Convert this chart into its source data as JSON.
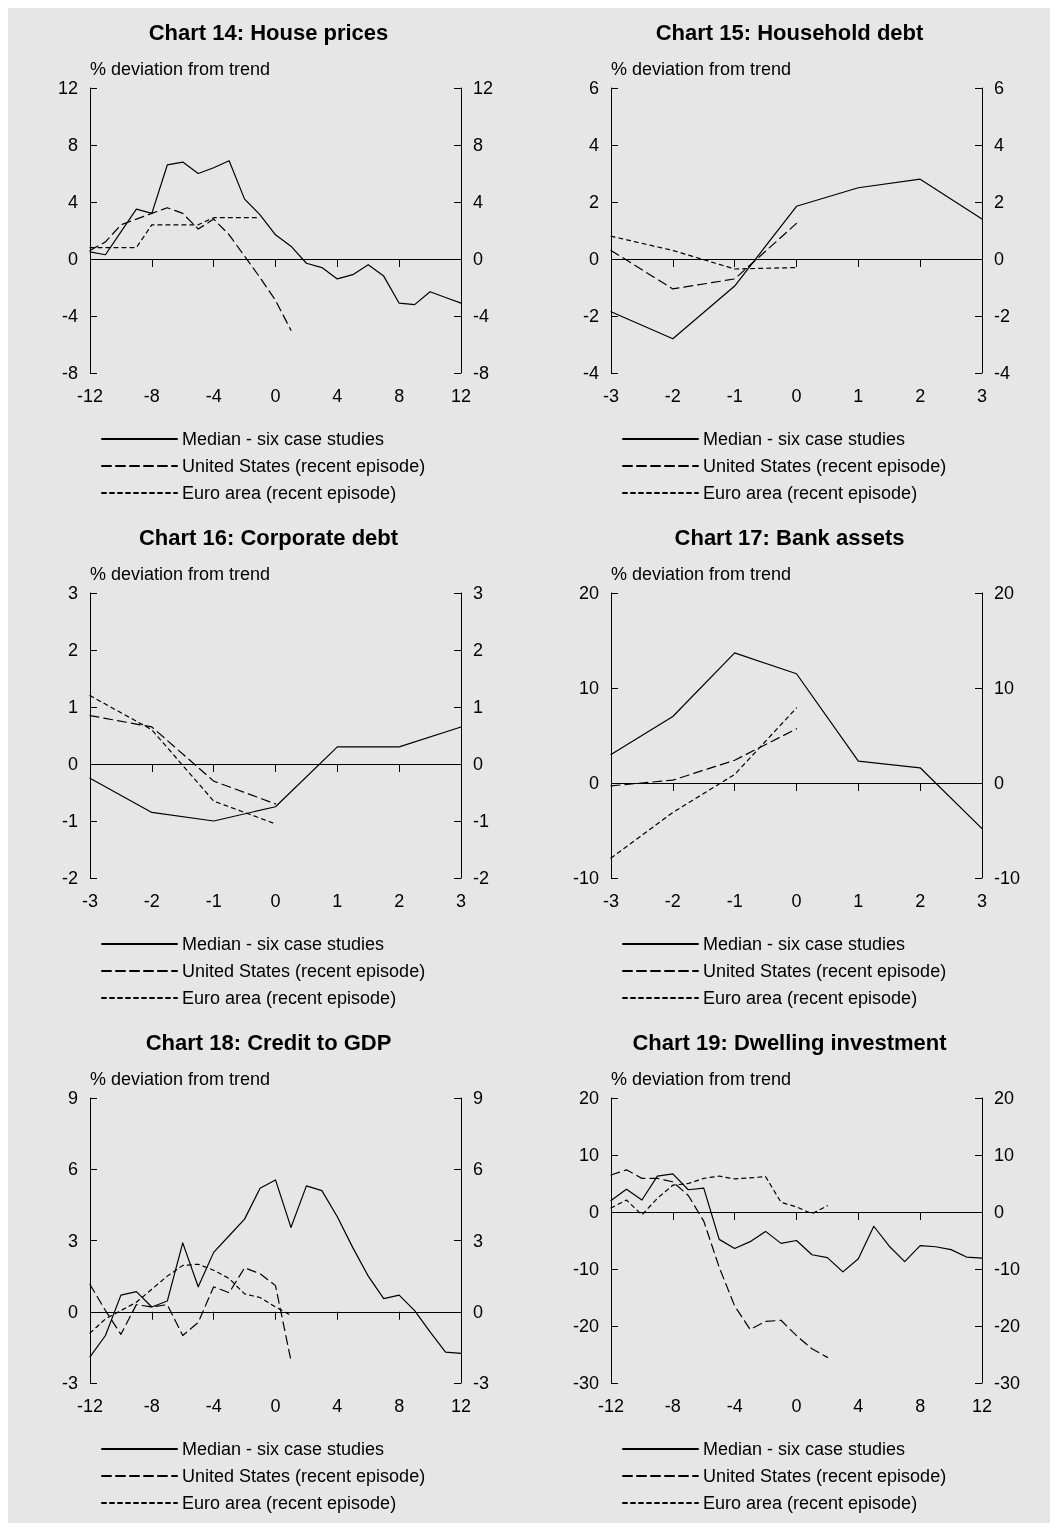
{
  "chart_data": [
    {
      "type": "line",
      "title": "Chart 14: House prices",
      "ylabel": "% deviation from trend",
      "x": [
        -12,
        -11,
        -10,
        -9,
        -8,
        -7,
        -6,
        -5,
        -4,
        -3,
        -2,
        -1,
        0,
        1,
        2,
        3,
        4,
        5,
        6,
        7,
        8,
        9,
        10,
        11,
        12
      ],
      "xlim": [
        -12,
        12
      ],
      "xticks": [
        -12,
        -8,
        -4,
        0,
        4,
        8,
        12
      ],
      "ylim": [
        -8,
        12
      ],
      "yticks": [
        -8,
        -4,
        0,
        4,
        8,
        12
      ],
      "y2lim": [
        -8,
        12
      ],
      "y2ticks": [
        -8,
        -4,
        0,
        4,
        8,
        12
      ],
      "ref_lines": [
        {
          "axis": "y",
          "value": 0
        }
      ],
      "legend": "bottom",
      "grid": false,
      "marker": "none",
      "series": [
        {
          "name": "Median - six case studies",
          "color": "#000000",
          "line_style": "solid",
          "values": [
            0.5,
            0.3,
            1.9,
            3.5,
            3.2,
            6.6,
            6.8,
            6.0,
            6.4,
            6.9,
            4.2,
            3.1,
            1.7,
            0.9,
            -0.3,
            -0.6,
            -1.4,
            -1.1,
            -0.4,
            -1.2,
            -3.1,
            -3.2,
            -2.3,
            -2.7,
            -3.1
          ]
        },
        {
          "name": "United States (recent episode)",
          "color": "#000000",
          "line_style": "dashed",
          "values": [
            0.6,
            1.2,
            2.4,
            2.8,
            3.2,
            3.6,
            3.2,
            2.1,
            2.8,
            1.7,
            0.2,
            -1.3,
            -2.9,
            -5.0,
            null,
            null,
            null,
            null,
            null,
            null,
            null,
            null,
            null,
            null,
            null
          ]
        },
        {
          "name": "Euro area (recent episode)",
          "color": "#000000",
          "line_style": "dashed",
          "values": [
            0.8,
            0.8,
            0.8,
            0.8,
            2.4,
            2.4,
            2.4,
            2.4,
            2.9,
            2.9,
            2.9,
            2.9,
            null,
            null,
            null,
            null,
            null,
            null,
            null,
            null,
            null,
            null,
            null,
            null,
            null
          ]
        }
      ]
    },
    {
      "type": "line",
      "title": "Chart 15: Household debt",
      "ylabel": "% deviation from trend",
      "x": [
        -3,
        -2,
        -1,
        0,
        1,
        2,
        3
      ],
      "xlim": [
        -3,
        3
      ],
      "xticks": [
        -3,
        -2,
        -1,
        0,
        1,
        2,
        3
      ],
      "ylim": [
        -4,
        6
      ],
      "yticks": [
        -4,
        -2,
        0,
        2,
        4,
        6
      ],
      "y2lim": [
        -4,
        6
      ],
      "y2ticks": [
        -4,
        -2,
        0,
        2,
        4,
        6
      ],
      "ref_lines": [
        {
          "axis": "y",
          "value": 0
        }
      ],
      "legend": "bottom",
      "grid": false,
      "marker": "none",
      "series": [
        {
          "name": "Median - six case studies",
          "color": "#000000",
          "line_style": "solid",
          "values": [
            -1.85,
            -2.8,
            -0.95,
            1.85,
            2.5,
            2.8,
            1.4
          ]
        },
        {
          "name": "United States (recent episode)",
          "color": "#000000",
          "line_style": "dashed",
          "values": [
            0.3,
            -1.05,
            -0.7,
            1.25,
            null,
            null,
            null
          ]
        },
        {
          "name": "Euro area (recent episode)",
          "color": "#000000",
          "line_style": "dashed",
          "values": [
            0.8,
            0.3,
            -0.35,
            -0.3,
            null,
            null,
            null
          ]
        }
      ]
    },
    {
      "type": "line",
      "title": "Chart 16: Corporate debt",
      "ylabel": "% deviation from trend",
      "x": [
        -3,
        -2,
        -1,
        0,
        1,
        2,
        3
      ],
      "xlim": [
        -3,
        3
      ],
      "xticks": [
        -3,
        -2,
        -1,
        0,
        1,
        2,
        3
      ],
      "ylim": [
        -2,
        3
      ],
      "yticks": [
        -2,
        -1,
        0,
        1,
        2,
        3
      ],
      "y2lim": [
        -2,
        3
      ],
      "y2ticks": [
        -2,
        -1,
        0,
        1,
        2,
        3
      ],
      "ref_lines": [
        {
          "axis": "y",
          "value": 0
        }
      ],
      "legend": "bottom",
      "grid": false,
      "marker": "none",
      "series": [
        {
          "name": "Median - six case studies",
          "color": "#000000",
          "line_style": "solid",
          "values": [
            -0.25,
            -0.85,
            -1.0,
            -0.75,
            0.3,
            0.3,
            0.65
          ]
        },
        {
          "name": "United States (recent episode)",
          "color": "#000000",
          "line_style": "dashed",
          "values": [
            0.85,
            0.65,
            -0.3,
            -0.7,
            null,
            null,
            null
          ]
        },
        {
          "name": "Euro area (recent episode)",
          "color": "#000000",
          "line_style": "dashed",
          "values": [
            1.2,
            0.6,
            -0.65,
            -1.05,
            null,
            null,
            null
          ]
        }
      ]
    },
    {
      "type": "line",
      "title": "Chart 17: Bank assets",
      "ylabel": "% deviation from trend",
      "x": [
        -3,
        -2,
        -1,
        0,
        1,
        2,
        3
      ],
      "xlim": [
        -3,
        3
      ],
      "xticks": [
        -3,
        -2,
        -1,
        0,
        1,
        2,
        3
      ],
      "ylim": [
        -10,
        20
      ],
      "yticks": [
        -10,
        0,
        10,
        20
      ],
      "y2lim": [
        -10,
        20
      ],
      "y2ticks": [
        -10,
        0,
        10,
        20
      ],
      "ref_lines": [
        {
          "axis": "y",
          "value": 0
        }
      ],
      "legend": "bottom",
      "grid": false,
      "marker": "none",
      "series": [
        {
          "name": "Median - six case studies",
          "color": "#000000",
          "line_style": "solid",
          "values": [
            3,
            7,
            13.7,
            11.5,
            2.3,
            1.6,
            -4.8
          ]
        },
        {
          "name": "United States (recent episode)",
          "color": "#000000",
          "line_style": "dashed",
          "values": [
            -0.3,
            0.3,
            2.4,
            5.7,
            null,
            null,
            null
          ]
        },
        {
          "name": "Euro area (recent episode)",
          "color": "#000000",
          "line_style": "dashed",
          "values": [
            -7.9,
            -3.1,
            0.9,
            7.9,
            null,
            null,
            null
          ]
        }
      ]
    },
    {
      "type": "line",
      "title": "Chart 18: Credit to GDP",
      "ylabel": "% deviation from trend",
      "x": [
        -12,
        -11,
        -10,
        -9,
        -8,
        -7,
        -6,
        -5,
        -4,
        -3,
        -2,
        -1,
        0,
        1,
        2,
        3,
        4,
        5,
        6,
        7,
        8,
        9,
        10,
        11,
        12
      ],
      "xlim": [
        -12,
        12
      ],
      "xticks": [
        -12,
        -8,
        -4,
        0,
        4,
        8,
        12
      ],
      "ylim": [
        -3,
        9
      ],
      "yticks": [
        -3,
        0,
        3,
        6,
        9
      ],
      "y2lim": [
        -3,
        9
      ],
      "y2ticks": [
        -3,
        0,
        3,
        6,
        9
      ],
      "ref_lines": [
        {
          "axis": "y",
          "value": 0
        }
      ],
      "legend": "bottom",
      "grid": false,
      "marker": "none",
      "series": [
        {
          "name": "Median - six case studies",
          "color": "#000000",
          "line_style": "solid",
          "values": [
            -1.9,
            -1.0,
            0.7,
            0.85,
            0.2,
            0.45,
            2.9,
            1.05,
            2.5,
            3.2,
            3.9,
            5.2,
            5.55,
            3.55,
            5.3,
            5.1,
            4.0,
            2.7,
            1.5,
            0.55,
            0.7,
            0.05,
            -0.85,
            -1.7,
            -1.75
          ]
        },
        {
          "name": "United States (recent episode)",
          "color": "#000000",
          "line_style": "dashed",
          "values": [
            1.15,
            0.05,
            -0.95,
            0.3,
            0.2,
            0.3,
            -1.0,
            -0.45,
            1.05,
            0.8,
            1.85,
            1.6,
            1.1,
            -2.05,
            null,
            null,
            null,
            null,
            null,
            null,
            null,
            null,
            null,
            null,
            null
          ]
        },
        {
          "name": "Euro area (recent episode)",
          "color": "#000000",
          "line_style": "dashed",
          "values": [
            -0.9,
            -0.3,
            0.05,
            0.4,
            0.95,
            1.5,
            1.95,
            2.0,
            1.75,
            1.4,
            0.75,
            0.6,
            0.2,
            -0.15,
            null,
            null,
            null,
            null,
            null,
            null,
            null,
            null,
            null,
            null,
            null
          ]
        }
      ]
    },
    {
      "type": "line",
      "title": "Chart 19: Dwelling investment",
      "ylabel": "% deviation from trend",
      "x": [
        -12,
        -11,
        -10,
        -9,
        -8,
        -7,
        -6,
        -5,
        -4,
        -3,
        -2,
        -1,
        0,
        1,
        2,
        3,
        4,
        5,
        6,
        7,
        8,
        9,
        10,
        11,
        12
      ],
      "xlim": [
        -12,
        12
      ],
      "xticks": [
        -12,
        -8,
        -4,
        0,
        4,
        8,
        12
      ],
      "ylim": [
        -30,
        20
      ],
      "yticks": [
        -30,
        -20,
        -10,
        0,
        10,
        20
      ],
      "y2lim": [
        -30,
        20
      ],
      "y2ticks": [
        -30,
        -20,
        -10,
        0,
        10,
        20
      ],
      "ref_lines": [
        {
          "axis": "y",
          "value": 0
        }
      ],
      "legend": "bottom",
      "grid": false,
      "marker": "none",
      "series": [
        {
          "name": "Median - six case studies",
          "color": "#000000",
          "line_style": "solid",
          "values": [
            2,
            4,
            2.1,
            6.3,
            6.7,
            3.9,
            4.2,
            -4.8,
            -6.4,
            -5.2,
            -3.4,
            -5.5,
            -5,
            -7.5,
            -8,
            -10.5,
            -8.2,
            -2.5,
            -6,
            -8.7,
            -5.9,
            -6.1,
            -6.6,
            -7.9,
            -8.1
          ]
        },
        {
          "name": "United States (recent episode)",
          "color": "#000000",
          "line_style": "dashed",
          "values": [
            6.5,
            7.4,
            5.9,
            5.9,
            5.3,
            2.9,
            -1.6,
            -9.7,
            -16.5,
            -20.6,
            -19.2,
            -19,
            -21.7,
            -24,
            -25.5,
            null,
            null,
            null,
            null,
            null,
            null,
            null,
            null,
            null,
            null
          ]
        },
        {
          "name": "Euro area (recent episode)",
          "color": "#000000",
          "line_style": "dashed",
          "values": [
            0.7,
            2.1,
            -0.5,
            2.4,
            4.7,
            5,
            5.9,
            6.3,
            5.8,
            6,
            6.2,
            1.7,
            0.9,
            -0.3,
            1.1,
            null,
            null,
            null,
            null,
            null,
            null,
            null,
            null,
            null,
            null
          ]
        }
      ]
    }
  ]
}
